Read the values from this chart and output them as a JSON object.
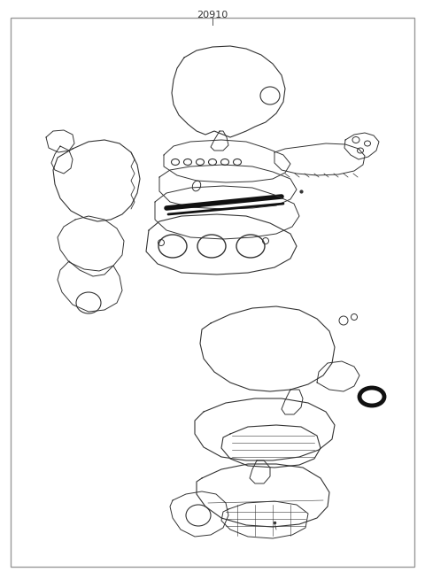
{
  "title": "20910",
  "bg_color": "#ffffff",
  "border_color": "#999999",
  "line_color": "#333333",
  "fig_width": 4.8,
  "fig_height": 6.55,
  "dpi": 100
}
